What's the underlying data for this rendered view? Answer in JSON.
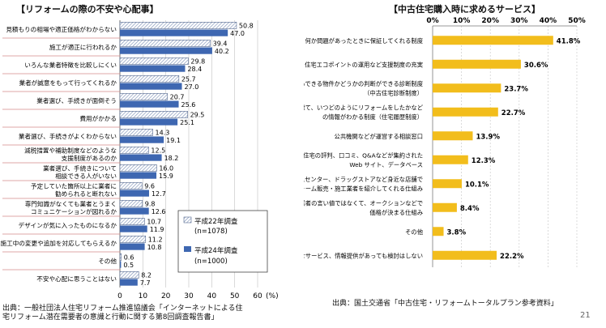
{
  "chart_data": [
    {
      "type": "bar",
      "orientation": "horizontal",
      "title": "【リフォームの際の不安や心配事】",
      "unit": "(%)",
      "xlim": [
        0,
        60
      ],
      "xticks": [
        0,
        10,
        20,
        30,
        40,
        50,
        60
      ],
      "categories": [
        [
          "見積もりの相場や適正価格がわからない"
        ],
        [
          "施工が適正に行われるか"
        ],
        [
          "いろんな業者特徴を比較しにくい"
        ],
        [
          "業者が誠意をもって行ってくれるか"
        ],
        [
          "業者選び、手続きが面倒そう"
        ],
        [
          "費用がかかる"
        ],
        [
          "業者選び、手続きがよくわからない"
        ],
        [
          "減税措置や補助制度などのような",
          "支援制度があるのか"
        ],
        [
          "業者選び、手続きについて",
          "相談できる人がいない"
        ],
        [
          "予定していた箇所以上に業者に",
          "勧められると断れない"
        ],
        [
          "専門知識がなくても業者とうまく",
          "コミュニケーションが図れるか"
        ],
        [
          "デザインが気に入ったものになるか"
        ],
        [
          "施工中の変更や追加を対応してもらえるか"
        ],
        [
          "その他"
        ],
        [
          "不安や心配に思うことはない"
        ]
      ],
      "series": [
        {
          "name": "平成22年調査",
          "n": "(n=1078)",
          "pattern": "hatched",
          "values": [
            50.8,
            39.4,
            29.8,
            25.7,
            20.7,
            29.5,
            14.3,
            12.5,
            16.0,
            9.6,
            9.8,
            10.7,
            11.2,
            0.6,
            8.2
          ]
        },
        {
          "name": "平成24年調査",
          "n": "(n=1000)",
          "color": "#3e67b1",
          "values": [
            47.0,
            40.2,
            28.4,
            27.0,
            25.6,
            25.1,
            19.1,
            18.2,
            15.9,
            12.7,
            12.6,
            11.9,
            10.8,
            0.5,
            7.7
          ]
        }
      ],
      "source": [
        "出典：一般社団法人住宅リフォーム推進協議会「インターネットによる住",
        "宅リフォーム潜在需要者の意識と行動に関する第8回調査報告書」"
      ]
    },
    {
      "type": "bar",
      "orientation": "horizontal",
      "title": "【中古住宅購入時に求めるサービス】",
      "xlim": [
        0,
        50
      ],
      "xticks": [
        "0%",
        "10%",
        "20%",
        "30%",
        "40%",
        "50%"
      ],
      "color": "#f2bd1c",
      "categories": [
        [
          "何か問題があったときに保証してくれる制度"
        ],
        [
          "住宅エコポイントの運用など支援制度の充実"
        ],
        [
          "安心できる物件かどうかの判断ができる診断制度",
          "（中古住宅診断制度）"
        ],
        [
          "いつどのように建て、いつどのようにリフォームをしたかなど",
          "の情報がわかる制度（住宅履歴制度）"
        ],
        [
          "公共機関などが運営する相談窓口"
        ],
        [
          "中古住宅の評判、口コミ、Q&Aなどが集約された",
          "Web サイト、データベース"
        ],
        [
          "家電量販店やホームセンター、ドラッグストアなど身近な店舗で",
          "リフォーム販売・施工業者を紹介してくれる仕組み"
        ],
        [
          "業者の言い値ではなくて、オークションなどで",
          "価格が決まる仕組み"
        ],
        [
          "その他"
        ],
        [
          "どのようなサービス、情報提供があっても検討はしない"
        ]
      ],
      "values": [
        41.8,
        30.6,
        23.7,
        22.7,
        13.9,
        12.3,
        10.1,
        8.4,
        3.8,
        22.2
      ],
      "labels": [
        "41.8%",
        "30.6%",
        "23.7%",
        "22.7%",
        "13.9%",
        "12.3%",
        "10.1%",
        "8.4%",
        "3.8%",
        "22.2%"
      ],
      "source": [
        "出典：国土交通省「中古住宅・リフォームトータルプラン参考資料」"
      ]
    }
  ],
  "page_number": "21"
}
